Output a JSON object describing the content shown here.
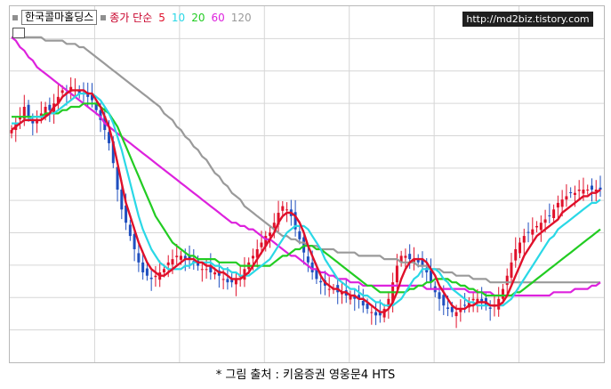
{
  "legend": {
    "title": "한국콜마홀딩스",
    "label": "종가 단순",
    "periods": [
      {
        "p": "5",
        "color": "#e0102a"
      },
      {
        "p": "10",
        "color": "#2ad8e6"
      },
      {
        "p": "20",
        "color": "#22cc22"
      },
      {
        "p": "60",
        "color": "#dd22dd"
      },
      {
        "p": "120",
        "color": "#9a9a9a"
      }
    ]
  },
  "watermark": "http://md2biz.tistory.com",
  "caption": "* 그림 출처 : 키움증권 영웅문4 HTS",
  "colors": {
    "up": "#e0102a",
    "down": "#1f4fbf",
    "grid": "#d6d6d6"
  },
  "chart_data": {
    "type": "line",
    "description_series": "candlestick price with simple moving averages",
    "n_bars": 140,
    "y_range": [
      0,
      100
    ],
    "close": [
      68,
      70,
      72,
      75,
      72,
      70,
      71,
      73,
      75,
      74,
      76,
      78,
      80,
      79,
      81,
      80,
      79,
      80,
      78,
      77,
      74,
      71,
      68,
      64,
      58,
      50,
      44,
      40,
      36,
      32,
      28,
      25,
      24,
      23,
      24,
      25,
      26,
      28,
      29,
      30,
      30,
      29,
      29,
      28,
      27,
      26,
      26,
      25,
      25,
      24,
      23,
      22,
      22,
      23,
      24,
      26,
      28,
      30,
      32,
      34,
      36,
      37,
      40,
      43,
      45,
      44,
      42,
      38,
      35,
      31,
      28,
      25,
      23,
      22,
      21,
      20,
      20,
      19,
      19,
      18,
      18,
      17,
      17,
      15,
      14,
      13,
      12,
      12,
      14,
      17,
      22,
      27,
      30,
      30,
      29,
      29,
      28,
      27,
      25,
      22,
      19,
      17,
      15,
      14,
      13,
      13,
      14,
      15,
      16,
      17,
      17,
      16,
      15,
      14,
      15,
      17,
      20,
      24,
      28,
      32,
      34,
      36,
      37,
      38,
      39,
      40,
      41,
      42,
      44,
      46,
      47,
      48,
      49,
      49,
      50,
      50,
      50,
      50,
      50,
      50
    ],
    "ma5": [
      68,
      69,
      70,
      71,
      71,
      71,
      71,
      71,
      72,
      73,
      75,
      76,
      78,
      79,
      80,
      80,
      80,
      80,
      79,
      79,
      77,
      75,
      72,
      69,
      64,
      58,
      52,
      46,
      42,
      38,
      34,
      31,
      28,
      26,
      25,
      24,
      24,
      25,
      26,
      27,
      28,
      29,
      29,
      29,
      28,
      28,
      27,
      27,
      26,
      25,
      25,
      24,
      23,
      23,
      23,
      24,
      25,
      27,
      29,
      31,
      33,
      35,
      37,
      40,
      42,
      43,
      43,
      42,
      40,
      37,
      33,
      30,
      27,
      24,
      22,
      21,
      20,
      20,
      19,
      19,
      18,
      18,
      17,
      17,
      16,
      15,
      14,
      13,
      13,
      14,
      16,
      19,
      23,
      26,
      28,
      29,
      29,
      29,
      28,
      26,
      24,
      21,
      19,
      17,
      15,
      14,
      14,
      14,
      15,
      15,
      16,
      16,
      16,
      15,
      15,
      15,
      16,
      18,
      21,
      24,
      27,
      30,
      32,
      34,
      36,
      37,
      38,
      39,
      40,
      41,
      43,
      44,
      45,
      46,
      47,
      48,
      48,
      49,
      49,
      50
    ],
    "ma10": [
      70,
      70,
      70,
      71,
      71,
      72,
      72,
      72,
      72,
      73,
      73,
      74,
      75,
      76,
      77,
      78,
      79,
      79,
      79,
      79,
      78,
      77,
      75,
      73,
      70,
      66,
      62,
      57,
      52,
      47,
      42,
      38,
      35,
      32,
      30,
      28,
      27,
      26,
      26,
      26,
      26,
      27,
      27,
      28,
      28,
      28,
      28,
      28,
      27,
      27,
      26,
      26,
      25,
      25,
      24,
      24,
      24,
      25,
      26,
      27,
      28,
      29,
      31,
      33,
      35,
      37,
      38,
      39,
      39,
      39,
      38,
      36,
      34,
      32,
      29,
      27,
      25,
      23,
      22,
      21,
      20,
      20,
      19,
      18,
      18,
      17,
      16,
      16,
      15,
      15,
      15,
      16,
      17,
      19,
      21,
      23,
      24,
      26,
      26,
      26,
      26,
      25,
      23,
      22,
      20,
      19,
      18,
      17,
      16,
      16,
      15,
      15,
      15,
      15,
      15,
      15,
      15,
      16,
      17,
      19,
      21,
      23,
      25,
      27,
      29,
      31,
      33,
      35,
      36,
      38,
      39,
      40,
      41,
      42,
      43,
      44,
      45,
      46,
      46,
      47
    ],
    "ma20": [
      72,
      72,
      72,
      72,
      72,
      72,
      72,
      72,
      73,
      73,
      73,
      73,
      74,
      74,
      75,
      75,
      75,
      76,
      76,
      76,
      76,
      75,
      74,
      73,
      71,
      69,
      66,
      63,
      60,
      57,
      54,
      51,
      48,
      45,
      42,
      40,
      38,
      36,
      34,
      33,
      32,
      31,
      30,
      30,
      29,
      29,
      29,
      29,
      29,
      28,
      28,
      28,
      28,
      28,
      27,
      27,
      27,
      27,
      27,
      27,
      27,
      27,
      28,
      29,
      30,
      30,
      31,
      32,
      32,
      33,
      33,
      33,
      32,
      32,
      31,
      30,
      29,
      28,
      27,
      26,
      25,
      24,
      23,
      22,
      21,
      21,
      20,
      19,
      19,
      19,
      19,
      19,
      19,
      19,
      20,
      20,
      21,
      21,
      22,
      22,
      23,
      23,
      23,
      23,
      22,
      22,
      21,
      21,
      20,
      20,
      19,
      19,
      18,
      18,
      18,
      18,
      18,
      18,
      18,
      19,
      19,
      20,
      21,
      22,
      23,
      24,
      25,
      26,
      27,
      28,
      29,
      30,
      31,
      32,
      33,
      34,
      35,
      36,
      37,
      38
    ],
    "ma60": [
      96,
      95,
      93,
      92,
      90,
      89,
      87,
      86,
      85,
      84,
      83,
      82,
      81,
      80,
      79,
      78,
      77,
      76,
      75,
      74,
      73,
      72,
      70,
      69,
      68,
      67,
      66,
      65,
      64,
      63,
      62,
      61,
      60,
      59,
      58,
      57,
      56,
      55,
      54,
      53,
      52,
      51,
      50,
      49,
      48,
      47,
      46,
      45,
      44,
      43,
      42,
      41,
      40,
      40,
      39,
      39,
      38,
      38,
      37,
      36,
      35,
      35,
      34,
      33,
      32,
      31,
      30,
      30,
      29,
      28,
      27,
      26,
      26,
      25,
      25,
      24,
      24,
      23,
      23,
      23,
      22,
      22,
      22,
      21,
      21,
      21,
      21,
      21,
      21,
      21,
      21,
      21,
      21,
      21,
      21,
      21,
      21,
      21,
      20,
      20,
      20,
      20,
      20,
      20,
      20,
      20,
      20,
      20,
      19,
      19,
      19,
      19,
      19,
      19,
      18,
      18,
      18,
      18,
      18,
      18,
      18,
      18,
      18,
      18,
      18,
      18,
      18,
      18,
      19,
      19,
      19,
      19,
      19,
      20,
      20,
      20,
      20,
      21,
      21,
      22
    ],
    "ma120": [
      96,
      96,
      96,
      96,
      96,
      96,
      96,
      96,
      95,
      95,
      95,
      95,
      95,
      94,
      94,
      94,
      93,
      93,
      92,
      91,
      90,
      89,
      88,
      87,
      86,
      85,
      84,
      83,
      82,
      81,
      80,
      79,
      78,
      77,
      76,
      75,
      73,
      72,
      71,
      69,
      68,
      66,
      65,
      63,
      62,
      60,
      59,
      57,
      55,
      54,
      52,
      51,
      49,
      48,
      47,
      45,
      44,
      43,
      42,
      41,
      40,
      39,
      38,
      37,
      36,
      36,
      35,
      35,
      34,
      34,
      33,
      33,
      33,
      32,
      32,
      32,
      32,
      31,
      31,
      31,
      31,
      31,
      30,
      30,
      30,
      30,
      30,
      30,
      29,
      29,
      29,
      29,
      28,
      28,
      28,
      28,
      27,
      27,
      27,
      26,
      26,
      26,
      25,
      25,
      25,
      24,
      24,
      24,
      24,
      23,
      23,
      23,
      23,
      22,
      22,
      22,
      22,
      22,
      22,
      22,
      22,
      22,
      22,
      22,
      22,
      22,
      22,
      22,
      22,
      22,
      22,
      22,
      22,
      22,
      22,
      22,
      22,
      22,
      22,
      22
    ]
  }
}
